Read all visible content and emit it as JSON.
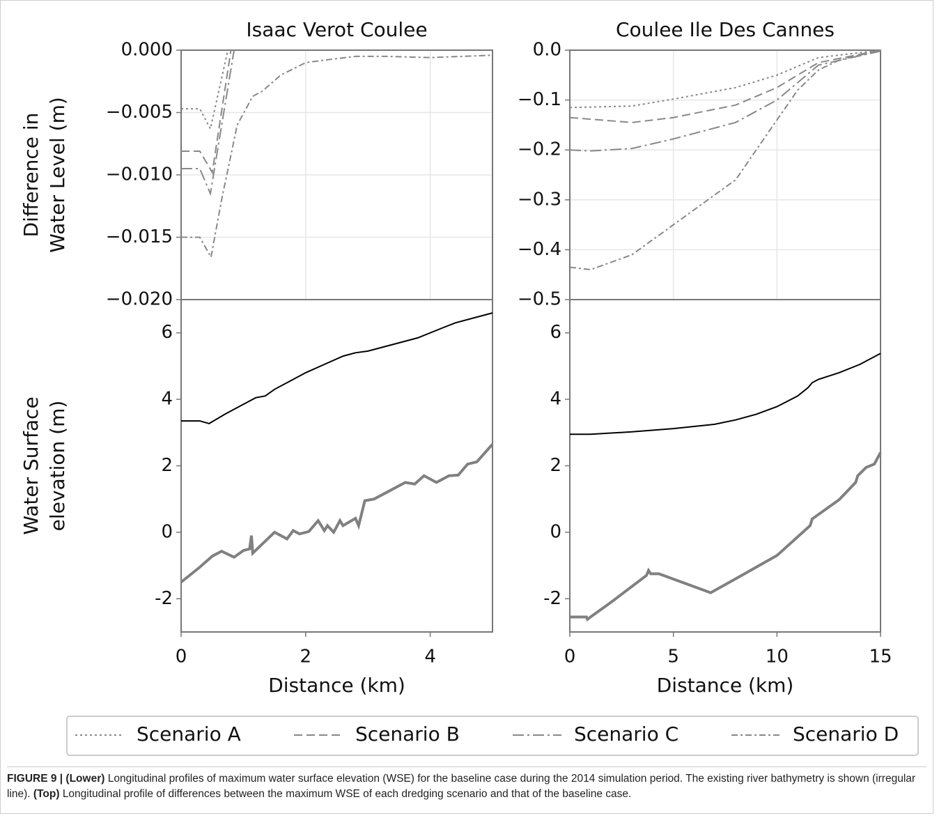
{
  "chart_data": [
    {
      "type": "line",
      "title": "Isaac Verot Coulee",
      "ylabel": [
        "Difference in",
        "Water Level (m)"
      ],
      "xlim": [
        0,
        5
      ],
      "xticks": [
        0,
        2,
        4
      ],
      "xtick_labels": false,
      "grid": true,
      "ylim": [
        -0.02,
        0
      ],
      "yticks": [
        {
          "value": -0.02,
          "label": "−0.020"
        },
        {
          "value": -0.015,
          "label": "−0.015"
        },
        {
          "value": -0.01,
          "label": "−0.010"
        },
        {
          "value": -0.005,
          "label": "−0.005"
        },
        {
          "value": 0,
          "label": "0.000"
        }
      ],
      "series": [
        {
          "name": "Scenario A",
          "color": "#888888",
          "dash": "3,4",
          "width": 2,
          "x": [
            0,
            0.3,
            0.47,
            0.75
          ],
          "values": [
            -0.0047,
            -0.0047,
            -0.0063,
            0
          ]
        },
        {
          "name": "Scenario B",
          "color": "#888888",
          "dash": "12,6",
          "width": 2,
          "x": [
            0,
            0.3,
            0.5,
            0.8
          ],
          "values": [
            -0.0081,
            -0.0081,
            -0.0098,
            0
          ]
        },
        {
          "name": "Scenario C",
          "color": "#888888",
          "dash": "16,5,3,5",
          "width": 2,
          "x": [
            0,
            0.3,
            0.47,
            0.85
          ],
          "values": [
            -0.0095,
            -0.0095,
            -0.0115,
            0
          ]
        },
        {
          "name": "Scenario D",
          "color": "#888888",
          "dash": "9,4,3,4",
          "width": 2,
          "x": [
            0,
            0.3,
            0.48,
            0.65,
            0.9,
            1.15,
            1.3,
            1.6,
            2.0,
            2.3,
            2.8,
            3.3,
            4.0,
            5.0
          ],
          "values": [
            -0.015,
            -0.015,
            -0.0166,
            -0.012,
            -0.006,
            -0.0037,
            -0.0033,
            -0.002,
            -0.001,
            -0.0008,
            -0.0005,
            -0.0005,
            -0.0006,
            -0.0004
          ]
        }
      ]
    },
    {
      "type": "line",
      "title": "Coulee Ile Des Cannes",
      "xlim": [
        0,
        15
      ],
      "xticks": [
        0,
        5,
        10,
        15
      ],
      "xtick_labels": false,
      "grid": true,
      "ylim": [
        -0.5,
        0
      ],
      "yticks": [
        {
          "value": -0.5,
          "label": "−0.5"
        },
        {
          "value": -0.4,
          "label": "−0.4"
        },
        {
          "value": -0.3,
          "label": "−0.3"
        },
        {
          "value": -0.2,
          "label": "−0.2"
        },
        {
          "value": -0.1,
          "label": "−0.1"
        },
        {
          "value": 0,
          "label": "0.0"
        }
      ],
      "series": [
        {
          "color": "#888888",
          "dash": "3,4",
          "width": 2,
          "x": [
            0,
            3,
            5,
            8,
            10,
            12,
            15
          ],
          "values": [
            -0.115,
            -0.112,
            -0.098,
            -0.075,
            -0.05,
            -0.015,
            0
          ]
        },
        {
          "color": "#888888",
          "dash": "12,6",
          "width": 2,
          "x": [
            0,
            3,
            5,
            8,
            10,
            12,
            15
          ],
          "values": [
            -0.135,
            -0.145,
            -0.135,
            -0.11,
            -0.075,
            -0.025,
            0
          ]
        },
        {
          "color": "#888888",
          "dash": "16,5,3,5",
          "width": 2,
          "x": [
            0,
            1,
            3,
            5,
            8,
            10,
            12,
            15
          ],
          "values": [
            -0.2,
            -0.202,
            -0.197,
            -0.178,
            -0.145,
            -0.1,
            -0.03,
            -0.002
          ]
        },
        {
          "color": "#888888",
          "dash": "9,4,3,4",
          "width": 2,
          "x": [
            0,
            1,
            3,
            5,
            7,
            8,
            9,
            10,
            11,
            12,
            13,
            15
          ],
          "values": [
            -0.435,
            -0.44,
            -0.41,
            -0.35,
            -0.29,
            -0.26,
            -0.2,
            -0.14,
            -0.08,
            -0.04,
            -0.02,
            0
          ]
        }
      ]
    },
    {
      "type": "line",
      "ylabel": [
        "Water Surface",
        "elevation (m)"
      ],
      "xlabel": "Distance (km)",
      "xlim": [
        0,
        5
      ],
      "xticks": [
        0,
        2,
        4
      ],
      "xtick_labels": true,
      "grid": false,
      "ylim": [
        -3,
        7
      ],
      "yticks": [
        -2,
        0,
        2,
        4,
        6
      ],
      "series": [
        {
          "color": "#000000",
          "width": 2,
          "x": [
            0,
            0.3,
            0.45,
            0.7,
            1.0,
            1.2,
            1.35,
            1.5,
            1.8,
            2.0,
            2.3,
            2.6,
            2.8,
            3.0,
            3.4,
            3.8,
            4.2,
            4.4,
            4.8,
            5.0
          ],
          "values": [
            3.35,
            3.35,
            3.27,
            3.55,
            3.85,
            4.05,
            4.1,
            4.3,
            4.6,
            4.8,
            5.05,
            5.3,
            5.4,
            5.45,
            5.65,
            5.85,
            6.15,
            6.3,
            6.5,
            6.6
          ]
        },
        {
          "color": "#808080",
          "width": 4,
          "x": [
            0,
            0.3,
            0.5,
            0.65,
            0.85,
            1.0,
            1.1,
            1.13,
            1.15,
            1.5,
            1.7,
            1.8,
            1.9,
            2.05,
            2.2,
            2.3,
            2.35,
            2.45,
            2.55,
            2.6,
            2.8,
            2.85,
            2.95,
            3.1,
            3.3,
            3.6,
            3.75,
            3.9,
            4.1,
            4.3,
            4.45,
            4.6,
            4.75,
            5.0
          ],
          "values": [
            -1.5,
            -1.05,
            -0.72,
            -0.57,
            -0.75,
            -0.55,
            -0.5,
            -0.1,
            -0.63,
            0.0,
            -0.2,
            0.05,
            -0.05,
            0.02,
            0.35,
            0.05,
            0.2,
            0.0,
            0.35,
            0.2,
            0.42,
            0.2,
            0.95,
            1.0,
            1.2,
            1.5,
            1.45,
            1.7,
            1.5,
            1.7,
            1.72,
            2.05,
            2.12,
            2.65
          ]
        }
      ]
    },
    {
      "type": "line",
      "xlabel": "Distance (km)",
      "xlim": [
        0,
        15
      ],
      "xticks": [
        0,
        5,
        10,
        15
      ],
      "xtick_labels": true,
      "grid": false,
      "ylim": [
        -3,
        7
      ],
      "yticks": [
        -2,
        0,
        2,
        4,
        6
      ],
      "series": [
        {
          "color": "#000000",
          "width": 2,
          "x": [
            0,
            1,
            3,
            5,
            7,
            8,
            9,
            10,
            11,
            11.5,
            11.7,
            12,
            13,
            14,
            15
          ],
          "values": [
            2.95,
            2.95,
            3.02,
            3.12,
            3.25,
            3.38,
            3.55,
            3.78,
            4.1,
            4.35,
            4.5,
            4.6,
            4.8,
            5.05,
            5.38
          ]
        },
        {
          "color": "#808080",
          "width": 4,
          "x": [
            0,
            0.8,
            0.85,
            1,
            2,
            3.7,
            3.8,
            3.9,
            4.3,
            6.8,
            7,
            8,
            10,
            11.6,
            11.7,
            13,
            13.8,
            13.9,
            14.3,
            14.7,
            15
          ],
          "values": [
            -2.55,
            -2.55,
            -2.62,
            -2.55,
            -2.1,
            -1.3,
            -1.15,
            -1.25,
            -1.25,
            -1.82,
            -1.75,
            -1.4,
            -0.7,
            0.2,
            0.4,
            0.98,
            1.5,
            1.7,
            1.95,
            2.05,
            2.4
          ]
        }
      ]
    }
  ],
  "caption": [
    "FIGURE 9 | (Lower)",
    "Longitudinal profiles of maximum water surface elevation (WSE) for the baseline case during the 2014 simulation period. The existing river bathymetry is shown (irregular line).",
    "(Top)",
    "Longitudinal profile of differences between the maximum WSE of each dredging scenario and that of the baseline case."
  ]
}
